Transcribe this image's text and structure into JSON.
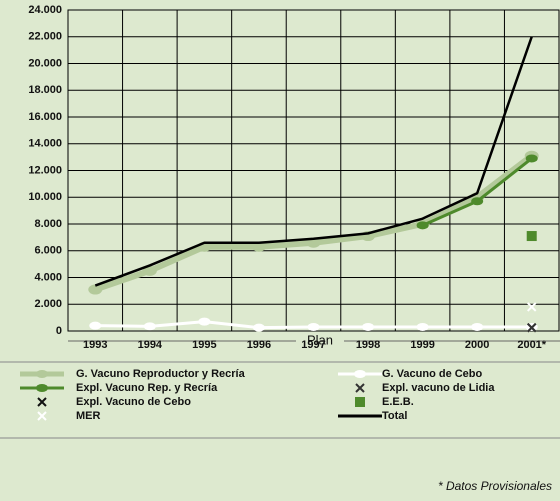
{
  "chart_data": {
    "type": "line",
    "categories": [
      "1993",
      "1994",
      "1995",
      "1996",
      "1997",
      "1998",
      "1999",
      "2000",
      "2001*"
    ],
    "x_label": "Plan",
    "ylim": [
      0,
      24000
    ],
    "yticks": [
      0,
      {
        "value": 2000,
        "label": "2.000"
      },
      {
        "value": 4000,
        "label": "4.000"
      },
      {
        "value": 6000,
        "label": "6.000"
      },
      {
        "value": 8000,
        "label": "8.000"
      },
      {
        "value": 10000,
        "label": "10.000"
      },
      {
        "value": 12000,
        "label": "12.000"
      },
      {
        "value": 14000,
        "label": "14.000"
      },
      {
        "value": 16000,
        "label": "16.000"
      },
      {
        "value": 18000,
        "label": "18.000"
      },
      {
        "value": 20000,
        "label": "20.000"
      },
      {
        "value": 22000,
        "label": "22.000"
      },
      {
        "value": 24000,
        "label": "24.000"
      }
    ],
    "grid": true,
    "series": [
      {
        "name": "G. Vacuno Reproductor y Recría",
        "color": "#b3c99a",
        "line": true,
        "marker": "circle",
        "values": [
          3100,
          4500,
          6300,
          6300,
          6600,
          7100,
          8000,
          10000,
          13100
        ]
      },
      {
        "name": "Expl. Vacuno Rep. y Recría",
        "color": "#4e8a2c",
        "line": true,
        "marker": "circle",
        "values": [
          null,
          null,
          null,
          null,
          null,
          null,
          7900,
          9700,
          12900
        ]
      },
      {
        "name": "Expl. Vacuno de Cebo",
        "color": "#111111",
        "line": false,
        "marker": "x",
        "values": [
          null,
          null,
          null,
          null,
          null,
          null,
          null,
          null,
          250
        ]
      },
      {
        "name": "MER",
        "color": "#ffffff",
        "line": false,
        "marker": "x",
        "values": [
          null,
          null,
          null,
          null,
          null,
          null,
          null,
          null,
          1800
        ]
      },
      {
        "name": "G. Vacuno de Cebo",
        "color": "#ffffff",
        "line": true,
        "marker": "circle",
        "values": [
          400,
          350,
          700,
          250,
          300,
          300,
          300,
          300,
          300
        ]
      },
      {
        "name": "Expl. vacuno de Lidia",
        "color": "#333333",
        "line": false,
        "marker": "x",
        "values": [
          null,
          null,
          null,
          null,
          null,
          null,
          null,
          null,
          250
        ]
      },
      {
        "name": "E.E.B.",
        "color": "#4e8a2c",
        "line": false,
        "marker": "square",
        "values": [
          null,
          null,
          null,
          null,
          null,
          null,
          null,
          null,
          7100
        ]
      },
      {
        "name": "Total",
        "color": "#000000",
        "line": true,
        "marker": "none",
        "values": [
          3400,
          4900,
          6600,
          6600,
          6900,
          7300,
          8400,
          10300,
          22000
        ]
      }
    ],
    "footnote": "* Datos Provisionales"
  }
}
